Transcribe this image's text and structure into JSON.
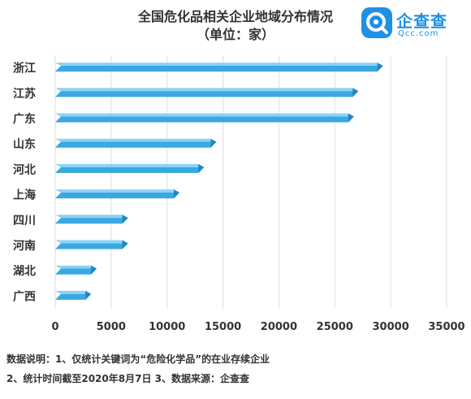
{
  "header": {
    "title": "全国危化品相关企业地域分布情况",
    "subtitle": "（单位：家）"
  },
  "logo": {
    "name": "企查查",
    "domain": "Qcc.com"
  },
  "notes": {
    "line1": "数据说明：1、仅统计关键词为“危险化学品”的在业存续企业",
    "line2": "2、统计时间截至2020年8月7日   3、数据来源：企查查"
  },
  "colors": {
    "bar_top": "#8BD3F3",
    "bar_front": "#3AA8E2",
    "bar_end": "#2285C4",
    "grid": "#DDDDDD",
    "text": "#333333",
    "brand": "#1E90E6"
  },
  "chart_data": {
    "type": "bar",
    "orientation": "horizontal",
    "title": "全国危化品相关企业地域分布情况",
    "subtitle": "（单位：家）",
    "categories": [
      "浙江",
      "江苏",
      "广东",
      "山东",
      "河北",
      "上海",
      "四川",
      "河南",
      "湖北",
      "广西"
    ],
    "values": [
      28800,
      26600,
      26200,
      13900,
      12800,
      10600,
      6000,
      6000,
      3200,
      2700
    ],
    "xlim": [
      0,
      35000
    ],
    "xticks": [
      "0",
      "5000",
      "10000",
      "15000",
      "20000",
      "25000",
      "30000",
      "35000"
    ],
    "grid": true
  }
}
